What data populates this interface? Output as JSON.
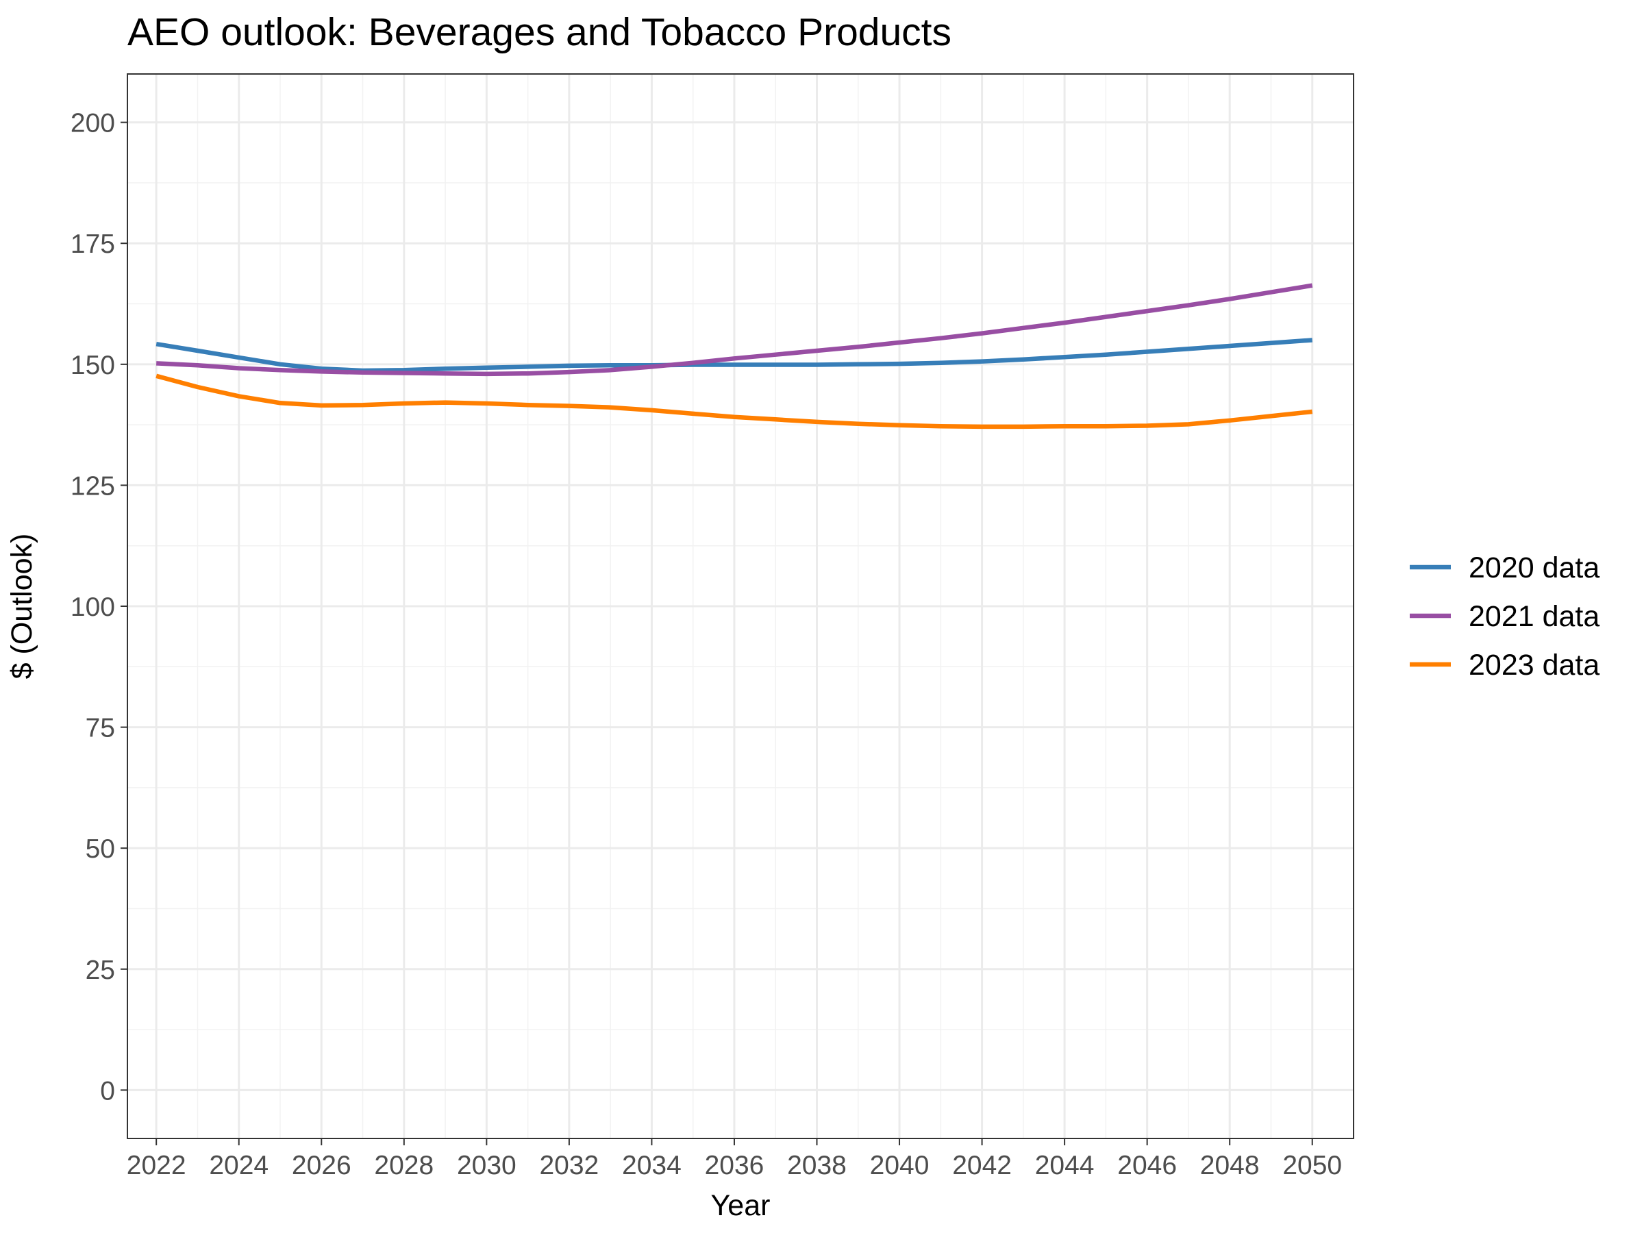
{
  "chart_data": {
    "type": "line",
    "title": "AEO outlook: Beverages and Tobacco Products",
    "xlabel": "Year",
    "ylabel": "$ (Outlook)",
    "xlim": [
      2021.3,
      2051.0
    ],
    "ylim": [
      -10,
      210
    ],
    "x_ticks": [
      2022,
      2024,
      2026,
      2028,
      2030,
      2032,
      2034,
      2036,
      2038,
      2040,
      2042,
      2044,
      2046,
      2048,
      2050
    ],
    "y_ticks": [
      0,
      25,
      50,
      75,
      100,
      125,
      150,
      175,
      200
    ],
    "grid": true,
    "legend_position": "right",
    "x": [
      2022,
      2023,
      2024,
      2025,
      2026,
      2027,
      2028,
      2029,
      2030,
      2031,
      2032,
      2033,
      2034,
      2035,
      2036,
      2037,
      2038,
      2039,
      2040,
      2041,
      2042,
      2043,
      2044,
      2045,
      2046,
      2047,
      2048,
      2049,
      2050
    ],
    "series": [
      {
        "name": "2020 data",
        "color": "#377eb8",
        "values": [
          154.2,
          152.8,
          151.4,
          150.0,
          149.1,
          148.7,
          148.8,
          149.1,
          149.3,
          149.5,
          149.7,
          149.8,
          149.8,
          149.9,
          149.9,
          149.9,
          149.9,
          150.0,
          150.1,
          150.3,
          150.6,
          151.0,
          151.5,
          152.0,
          152.6,
          153.2,
          153.8,
          154.4,
          155.0
        ]
      },
      {
        "name": "2021 data",
        "color": "#984ea3",
        "values": [
          150.2,
          149.8,
          149.2,
          148.8,
          148.5,
          148.3,
          148.2,
          148.1,
          148.0,
          148.1,
          148.4,
          148.8,
          149.5,
          150.3,
          151.2,
          152.0,
          152.8,
          153.6,
          154.5,
          155.4,
          156.4,
          157.5,
          158.6,
          159.8,
          161.0,
          162.2,
          163.5,
          164.9,
          166.3
        ]
      },
      {
        "name": "2023 data",
        "color": "#ff7f00",
        "values": [
          147.6,
          145.3,
          143.4,
          142.0,
          141.5,
          141.6,
          141.9,
          142.1,
          141.9,
          141.6,
          141.4,
          141.1,
          140.5,
          139.8,
          139.1,
          138.6,
          138.1,
          137.7,
          137.4,
          137.2,
          137.1,
          137.1,
          137.2,
          137.2,
          137.3,
          137.6,
          138.4,
          139.3,
          140.2
        ]
      }
    ]
  }
}
